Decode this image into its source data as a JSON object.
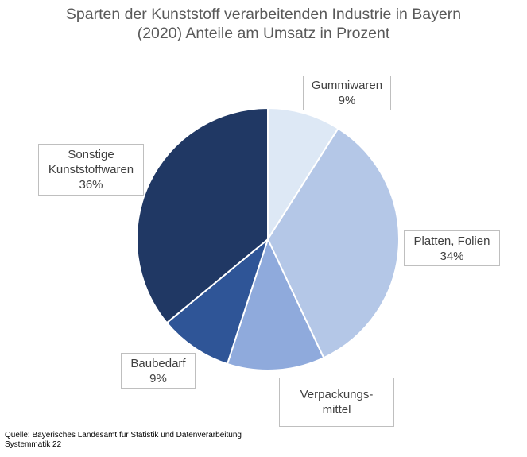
{
  "title": {
    "line1": "Sparten der Kunststoff verarbeitenden Industrie in Bayern",
    "line2": "(2020) Anteile am Umsatz in Prozent"
  },
  "chart_data": {
    "type": "pie",
    "title": "Sparten der Kunststoff verarbeitenden Industrie in Bayern (2020) Anteile am Umsatz in Prozent",
    "slices": [
      {
        "label_lines": [
          "Gummiwaren"
        ],
        "value": 9,
        "value_label": "9%",
        "color": "#dde8f5"
      },
      {
        "label_lines": [
          "Platten, Folien"
        ],
        "value": 34,
        "value_label": "34%",
        "color": "#b4c7e7"
      },
      {
        "label_lines": [
          "Verpackungs-",
          "mittel"
        ],
        "value": 12,
        "value_label": "",
        "color": "#8faadc"
      },
      {
        "label_lines": [
          "Baubedarf"
        ],
        "value": 9,
        "value_label": "9%",
        "color": "#2f5597"
      },
      {
        "label_lines": [
          "Sonstige",
          "Kunststoffwaren"
        ],
        "value": 36,
        "value_label": "36%",
        "color": "#203864"
      }
    ]
  },
  "source": {
    "line1": "Quelle:  Bayerisches Landesamt für Statistik und Datenverarbeitung",
    "line2": "Systemmatik 22"
  }
}
